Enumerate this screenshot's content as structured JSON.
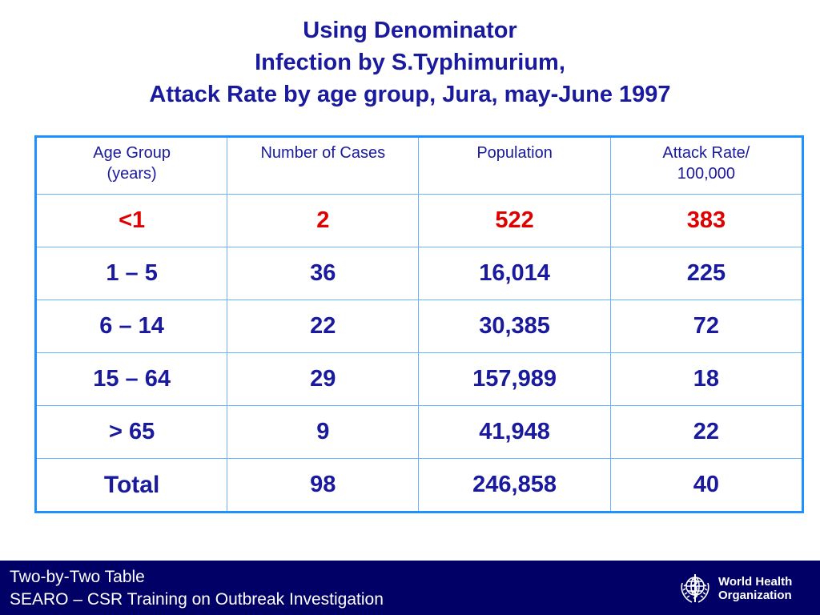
{
  "title": {
    "line1": "Using Denominator",
    "line2": "Infection by S.Typhimurium,",
    "line3": "Attack Rate by age group, Jura, may-June 1997"
  },
  "table": {
    "headers": [
      [
        "Age Group",
        "(years)"
      ],
      [
        "Number of Cases"
      ],
      [
        "Population"
      ],
      [
        "Attack Rate/",
        "100,000"
      ]
    ],
    "rows": [
      [
        "<1",
        "2",
        "522",
        "383"
      ],
      [
        "1 – 5",
        "36",
        "16,014",
        "225"
      ],
      [
        "6 – 14",
        "22",
        "30,385",
        "72"
      ],
      [
        "15 – 64",
        "29",
        "157,989",
        "18"
      ],
      [
        "> 65",
        "9",
        "41,948",
        "22"
      ],
      [
        "Total",
        "98",
        "246,858",
        "40"
      ]
    ]
  },
  "footer": {
    "line1": "Two-by-Two Table",
    "line2": "SEARO – CSR Training on Outbreak Investigation",
    "logo_text_1": "World Health",
    "logo_text_2": "Organization"
  },
  "colors": {
    "title": "#1a1a9e",
    "highlight_row": "#e00000",
    "table_border": "#1e90ff",
    "footer_bg": "#000066"
  }
}
